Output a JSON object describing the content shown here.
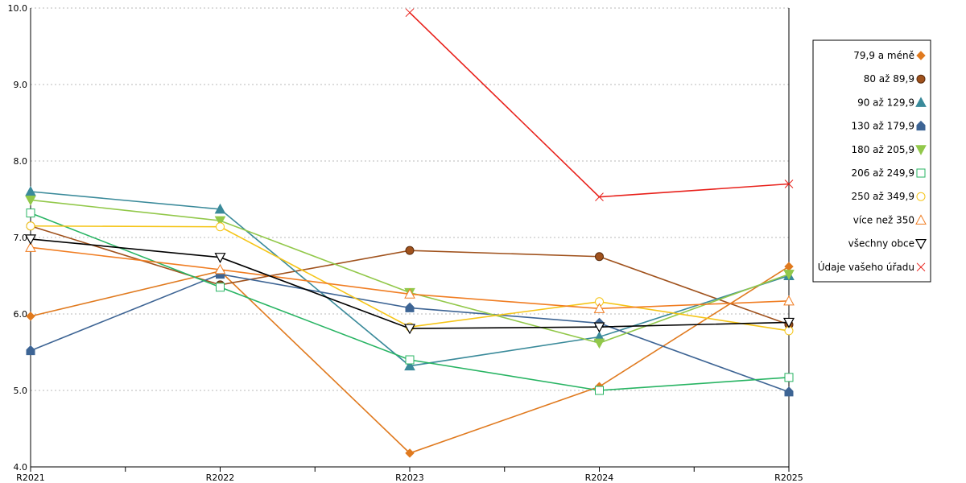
{
  "chart_data": {
    "type": "line",
    "categories": [
      "R2021",
      "R2022",
      "R2023",
      "R2024",
      "R2025"
    ],
    "ylim": [
      4.0,
      10.0
    ],
    "yticks": [
      "4.0",
      "5.0",
      "6.0",
      "7.0",
      "8.0",
      "9.0",
      "10.0"
    ],
    "grid": "horizontal dotted",
    "legend_position": "right",
    "series": [
      {
        "name": "79,9 a méně",
        "color": "#e07a1f",
        "marker": "diamond-filled",
        "values": [
          5.97,
          6.56,
          4.18,
          5.05,
          6.62
        ]
      },
      {
        "name": "80 až 89,9",
        "color": "#a0521d",
        "marker": "circle-filled",
        "values": [
          7.15,
          6.38,
          6.83,
          6.75,
          5.86
        ]
      },
      {
        "name": "90 až 129,9",
        "color": "#3a8a9a",
        "marker": "triangle-up-filled",
        "values": [
          7.6,
          7.37,
          5.32,
          5.7,
          6.5
        ]
      },
      {
        "name": "130 až 179,9",
        "color": "#3d6494",
        "marker": "house-filled",
        "values": [
          5.52,
          6.52,
          6.08,
          5.88,
          4.98
        ]
      },
      {
        "name": "180 až 205,9",
        "color": "#92c84a",
        "marker": "triangle-down-filled",
        "values": [
          7.49,
          7.22,
          6.28,
          5.62,
          6.52
        ]
      },
      {
        "name": "206 až 249,9",
        "color": "#28b463",
        "marker": "square-open",
        "values": [
          7.32,
          6.35,
          5.4,
          5.0,
          5.17
        ]
      },
      {
        "name": "250 až 349,9",
        "color": "#f5c518",
        "marker": "circle-open",
        "values": [
          7.15,
          7.14,
          5.83,
          6.16,
          5.78
        ]
      },
      {
        "name": "více než 350",
        "color": "#f07d22",
        "marker": "triangle-up-open",
        "values": [
          6.87,
          6.58,
          6.26,
          6.07,
          6.17
        ]
      },
      {
        "name": "všechny obce",
        "color": "#000000",
        "marker": "triangle-down-open",
        "values": [
          6.98,
          6.74,
          5.81,
          5.83,
          5.89
        ]
      },
      {
        "name": "Údaje vašeho úřadu",
        "color": "#e8201a",
        "marker": "x",
        "values": [
          null,
          null,
          9.94,
          7.53,
          7.7
        ]
      }
    ]
  }
}
